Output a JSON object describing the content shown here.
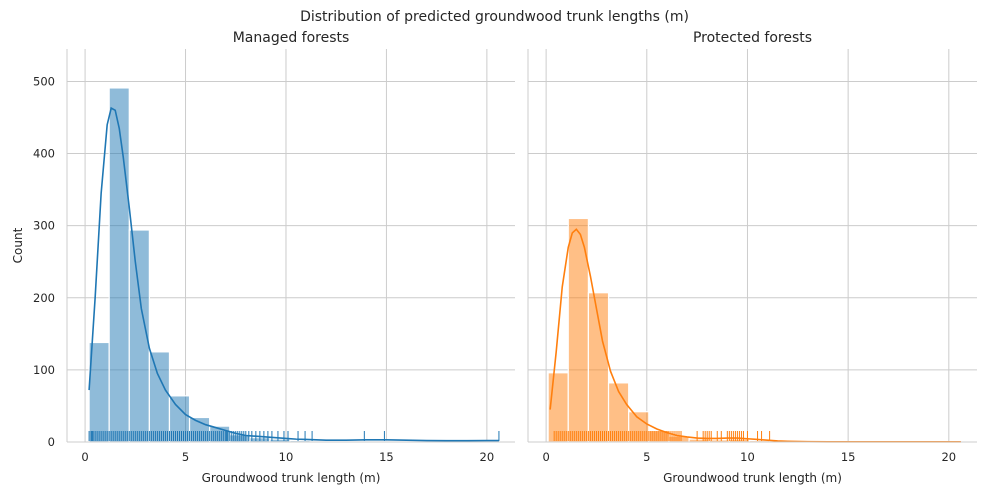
{
  "chart_data": {
    "type": "histogram",
    "title": "Distribution of predicted groundwood trunk lengths (m)",
    "grid": true,
    "shared_y": true,
    "ylabel": "Count",
    "ylim": [
      0,
      545
    ],
    "yticks": [
      0,
      100,
      200,
      300,
      400,
      500
    ],
    "panels": [
      {
        "title": "Managed forests",
        "xlabel": "Groundwood trunk length (m)",
        "xlim": [
          -0.9,
          21.4
        ],
        "xticks": [
          0,
          5,
          10,
          15,
          20
        ],
        "color": "#1f77b4",
        "bin_edges": [
          0.2,
          1.2,
          2.2,
          3.2,
          4.2,
          5.2,
          6.2,
          7.2,
          8.2,
          9.2,
          10.2,
          11.2,
          12.2,
          13.2,
          14.2,
          15.2,
          16.2,
          17.2,
          18.2,
          19.2,
          20.2
        ],
        "counts": [
          138,
          491,
          294,
          125,
          64,
          34,
          22,
          10,
          6,
          4,
          2,
          1,
          0,
          1,
          1,
          0,
          0,
          0,
          0,
          1
        ],
        "kde": {
          "x": [
            0.2,
            0.5,
            0.8,
            1.1,
            1.3,
            1.5,
            1.7,
            1.9,
            2.2,
            2.5,
            2.8,
            3.2,
            3.6,
            4.0,
            4.5,
            5.0,
            5.5,
            6.0,
            6.5,
            7.0,
            7.5,
            8.0,
            8.5,
            9.0,
            9.5,
            10.0,
            10.5,
            11.0,
            11.5,
            12.0,
            13.0,
            14.0,
            15.0,
            16.0,
            17.0,
            18.0,
            19.0,
            20.0,
            20.6
          ],
          "y": [
            72,
            200,
            345,
            440,
            463,
            460,
            435,
            395,
            325,
            250,
            185,
            130,
            95,
            72,
            52,
            38,
            30,
            24,
            20,
            16,
            12,
            9,
            8,
            7,
            6,
            5,
            4,
            3.5,
            3,
            2.5,
            2.5,
            3,
            3,
            2.5,
            2,
            1.8,
            1.8,
            2,
            2
          ]
        },
        "rug": [
          0.2,
          0.3,
          0.35,
          0.4,
          0.5,
          0.6,
          0.7,
          0.8,
          0.9,
          1.0,
          1.1,
          1.2,
          1.3,
          1.4,
          1.5,
          1.6,
          1.7,
          1.8,
          1.9,
          2.0,
          2.1,
          2.2,
          2.3,
          2.4,
          2.5,
          2.6,
          2.7,
          2.8,
          2.9,
          3.0,
          3.1,
          3.2,
          3.3,
          3.4,
          3.5,
          3.6,
          3.7,
          3.8,
          3.9,
          4.0,
          4.1,
          4.2,
          4.3,
          4.4,
          4.5,
          4.6,
          4.7,
          4.8,
          4.9,
          5.0,
          5.1,
          5.2,
          5.3,
          5.4,
          5.5,
          5.6,
          5.7,
          5.8,
          5.9,
          6.0,
          6.1,
          6.2,
          6.3,
          6.4,
          6.5,
          6.6,
          6.7,
          6.8,
          6.9,
          7.0,
          7.05,
          7.1,
          7.2,
          7.3,
          7.4,
          7.5,
          7.6,
          7.7,
          7.8,
          7.9,
          8.0,
          8.15,
          8.3,
          8.5,
          8.7,
          8.9,
          9.1,
          9.3,
          9.6,
          9.9,
          10.1,
          10.6,
          10.95,
          11.3,
          13.9,
          14.9,
          20.6
        ]
      },
      {
        "title": "Protected forests",
        "xlabel": "Groundwood trunk length (m)",
        "xlim": [
          -0.9,
          21.4
        ],
        "xticks": [
          0,
          5,
          10,
          15,
          20
        ],
        "color": "#ff7f0e",
        "bin_edges": [
          0.1,
          1.1,
          2.1,
          3.1,
          4.1,
          5.1,
          6.1,
          7.1,
          8.1,
          9.1,
          10.1,
          11.1,
          12.1,
          13.1,
          14.1,
          15.1,
          16.1,
          17.1,
          18.1,
          19.1,
          20.1
        ],
        "counts": [
          96,
          310,
          207,
          82,
          42,
          16,
          8,
          4,
          3,
          4,
          2,
          1,
          0,
          0,
          0,
          0,
          0,
          0,
          0,
          0
        ],
        "kde": {
          "x": [
            0.2,
            0.5,
            0.8,
            1.1,
            1.3,
            1.5,
            1.7,
            1.9,
            2.2,
            2.5,
            2.8,
            3.2,
            3.6,
            4.0,
            4.5,
            5.0,
            5.5,
            6.0,
            6.5,
            7.0,
            7.5,
            8.0,
            8.5,
            9.0,
            9.5,
            10.0,
            10.5,
            11.0,
            11.5,
            12.0,
            13.0,
            14.0,
            15.0,
            16.0,
            17.0,
            18.0,
            19.0,
            20.0,
            20.6
          ],
          "y": [
            45,
            125,
            215,
            270,
            290,
            295,
            288,
            270,
            230,
            185,
            140,
            98,
            70,
            52,
            35,
            25,
            18,
            13,
            9,
            7,
            5.5,
            5,
            5,
            5.5,
            5.5,
            4.5,
            3.5,
            2.5,
            1.5,
            1,
            0.5,
            0.3,
            0.2,
            0.2,
            0.2,
            0.2,
            0.2,
            0.2,
            0.2
          ]
        },
        "rug": [
          0.4,
          0.5,
          0.6,
          0.7,
          0.8,
          0.9,
          1.0,
          1.1,
          1.2,
          1.3,
          1.4,
          1.5,
          1.6,
          1.7,
          1.8,
          1.9,
          2.0,
          2.1,
          2.2,
          2.3,
          2.4,
          2.5,
          2.6,
          2.7,
          2.8,
          2.9,
          3.0,
          3.1,
          3.2,
          3.3,
          3.4,
          3.5,
          3.6,
          3.7,
          3.8,
          3.9,
          4.0,
          4.1,
          4.2,
          4.3,
          4.4,
          4.5,
          4.6,
          4.7,
          4.8,
          4.9,
          5.0,
          5.1,
          5.2,
          5.3,
          5.4,
          5.5,
          5.6,
          5.7,
          5.8,
          5.9,
          6.0,
          6.1,
          6.2,
          6.3,
          6.4,
          6.5,
          6.6,
          6.7,
          7.5,
          7.8,
          7.9,
          8.0,
          8.1,
          8.2,
          8.5,
          8.7,
          9.0,
          9.1,
          9.2,
          9.3,
          9.4,
          9.5,
          9.6,
          9.7,
          9.8,
          10.0,
          10.5,
          10.7,
          11.1
        ]
      }
    ]
  }
}
